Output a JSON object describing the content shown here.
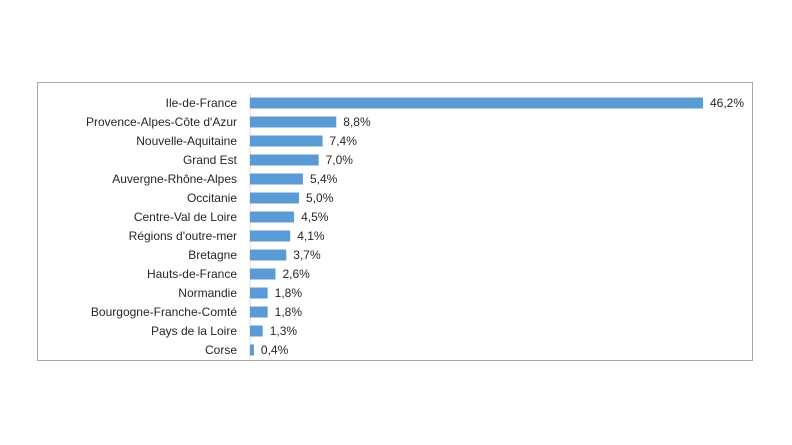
{
  "chart_data": {
    "type": "bar",
    "orientation": "horizontal",
    "categories": [
      "Ile-de-France",
      "Provence-Alpes-Côte d'Azur",
      "Nouvelle-Aquitaine",
      "Grand Est",
      "Auvergne-Rhône-Alpes",
      "Occitanie",
      "Centre-Val de Loire",
      "Régions d'outre-mer",
      "Bretagne",
      "Hauts-de-France",
      "Normandie",
      "Bourgogne-Franche-Comté",
      "Pays de la Loire",
      "Corse"
    ],
    "values": [
      46.2,
      8.8,
      7.4,
      7.0,
      5.4,
      5.0,
      4.5,
      4.1,
      3.7,
      2.6,
      1.8,
      1.8,
      1.3,
      0.4
    ],
    "data_labels": [
      "46,2%",
      "8,8%",
      "7,4%",
      "7,0%",
      "5,4%",
      "5,0%",
      "4,5%",
      "4,1%",
      "3,7%",
      "2,6%",
      "1,8%",
      "1,8%",
      "1,3%",
      "0,4%"
    ],
    "title": "",
    "xlabel": "",
    "ylabel": "",
    "xlim": [
      0,
      46.2
    ],
    "grid": false,
    "legend": "none",
    "bar_color": "#5b9bd5",
    "axis_color": "#d9d9d9",
    "frame_color": "#a6a6a6"
  }
}
